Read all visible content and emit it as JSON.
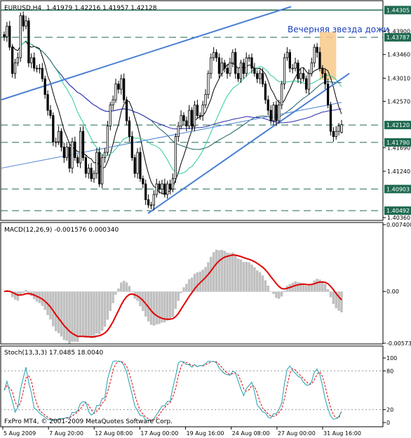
{
  "main": {
    "symbol_label": "EURUSD,H4",
    "ohlc_label": "1.41979 1.42216 1.41957 1.42128",
    "annotation": "Вечерняя звезда дожи",
    "price_ticks": [
      "1.43900",
      "1.43460",
      "1.43010",
      "1.42570",
      "1.41690",
      "1.41240",
      "1.40360"
    ],
    "price_levels": [
      "1.44305",
      "1.43787",
      "1.42120",
      "1.41790",
      "1.40903",
      "1.40492"
    ],
    "level_color": "#1e6a50",
    "bull_color": "#ffffff",
    "bear_color": "#000000",
    "trendline_color": "#4a7fd4",
    "highlight_color": "#f8c98a"
  },
  "macd": {
    "label": "MACD(12,26,9) -0.001576 0.000340",
    "ticks": [
      "0.007400",
      "0.00",
      "-0.00573"
    ],
    "hist_color": "#c0c0c0",
    "signal_color": "#e00000"
  },
  "stoch": {
    "label": "Stoch(13,3,3) 17.0485 18.0040",
    "ticks": [
      "100",
      "80",
      "20",
      "0"
    ],
    "main_color": "#20a0b0",
    "signal_color": "#e00000"
  },
  "copyright": "FxPro MT4, © 2001-2009 MetaQuotes Software Corp.",
  "time_labels": [
    "5 Aug 2009",
    "7 Aug 20:00",
    "12 Aug 08:00",
    "17 Aug 00:00",
    "19 Aug 16:00",
    "24 Aug 08:00",
    "27 Aug 00:00",
    "31 Aug 16:00"
  ],
  "chart_data": {
    "type": "candlestick",
    "instrument": "EURUSD",
    "timeframe": "H4",
    "last_ohlc": {
      "open": 1.41979,
      "high": 1.42216,
      "low": 1.41957,
      "close": 1.42128
    },
    "horizontal_levels": [
      1.44305,
      1.43787,
      1.4212,
      1.4179,
      1.40903,
      1.40492
    ],
    "price_range": [
      1.4032,
      1.4447
    ],
    "close": [
      1.438,
      1.44,
      1.436,
      1.431,
      1.433,
      1.434,
      1.442,
      1.44,
      1.441,
      1.433,
      1.434,
      1.432,
      1.432,
      1.432,
      1.43,
      1.427,
      1.424,
      1.423,
      1.418,
      1.418,
      1.42,
      1.417,
      1.415,
      1.417,
      1.413,
      1.418,
      1.415,
      1.414,
      1.42,
      1.415,
      1.412,
      1.413,
      1.411,
      1.412,
      1.416,
      1.41,
      1.415,
      1.416,
      1.421,
      1.425,
      1.426,
      1.429,
      1.428,
      1.43,
      1.426,
      1.422,
      1.419,
      1.415,
      1.412,
      1.416,
      1.411,
      1.41,
      1.407,
      1.406,
      1.406,
      1.408,
      1.41,
      1.409,
      1.41,
      1.408,
      1.41,
      1.409,
      1.411,
      1.419,
      1.421,
      1.423,
      1.422,
      1.421,
      1.424,
      1.421,
      1.425,
      1.423,
      1.423,
      1.425,
      1.427,
      1.431,
      1.434,
      1.435,
      1.434,
      1.431,
      1.433,
      1.432,
      1.431,
      1.433,
      1.435,
      1.431,
      1.43,
      1.433,
      1.431,
      1.434,
      1.434,
      1.432,
      1.431,
      1.43,
      1.431,
      1.429,
      1.426,
      1.424,
      1.422,
      1.425,
      1.422,
      1.425,
      1.429,
      1.434,
      1.435,
      1.432,
      1.432,
      1.433,
      1.43,
      1.431,
      1.43,
      1.428,
      1.431,
      1.433,
      1.436,
      1.435,
      1.432,
      1.431,
      1.429,
      1.425,
      1.42,
      1.419,
      1.42,
      1.421,
      1.421
    ],
    "macd": {
      "last_main": -0.001576,
      "last_signal": 0.00034,
      "ylim": [
        -0.00573,
        0.0074
      ]
    },
    "stochastic": {
      "last_main": 17.0485,
      "last_signal": 18.004,
      "ylim": [
        0,
        100
      ],
      "levels": [
        20,
        80
      ]
    }
  }
}
